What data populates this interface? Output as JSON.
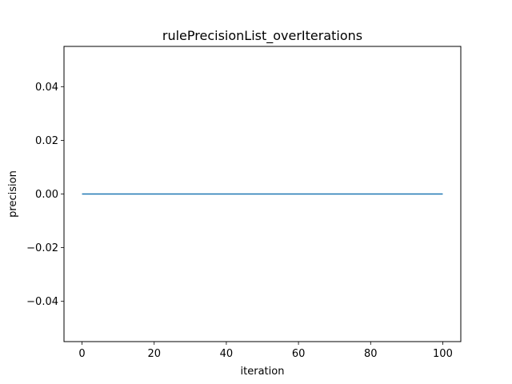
{
  "chart_data": {
    "type": "line",
    "title": "rulePrecisionList_overIterations",
    "xlabel": "iteration",
    "ylabel": "precision",
    "xlim": [
      -5,
      105
    ],
    "ylim": [
      -0.055,
      0.055
    ],
    "x_ticks": [
      0,
      20,
      40,
      60,
      80,
      100
    ],
    "x_tick_labels": [
      "0",
      "20",
      "40",
      "60",
      "80",
      "100"
    ],
    "y_ticks": [
      -0.04,
      -0.02,
      0.0,
      0.02,
      0.04
    ],
    "y_tick_labels": [
      "−0.04",
      "−0.02",
      "0.00",
      "0.02",
      "0.04"
    ],
    "grid": false,
    "series": [
      {
        "color": "#1f77b4",
        "x": [
          0,
          100
        ],
        "y": [
          0.0,
          0.0
        ]
      }
    ]
  }
}
